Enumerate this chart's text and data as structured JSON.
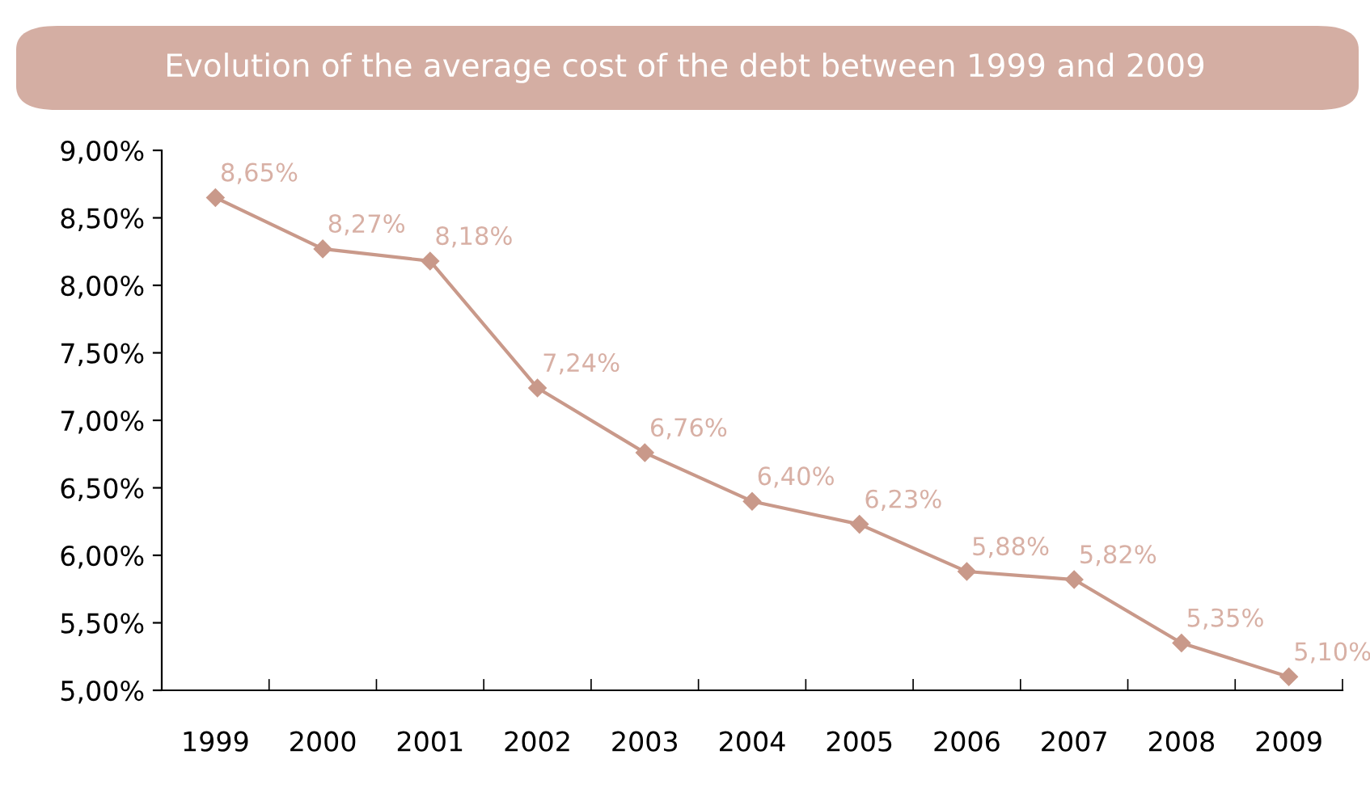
{
  "chart_data": {
    "type": "line",
    "title": "Evolution of the average cost of the debt between 1999 and 2009",
    "categories": [
      "1999",
      "2000",
      "2001",
      "2002",
      "2003",
      "2004",
      "2005",
      "2006",
      "2007",
      "2008",
      "2009"
    ],
    "series": [
      {
        "color": "#c9998a",
        "values": [
          8.65,
          8.27,
          8.18,
          7.24,
          6.76,
          6.4,
          6.23,
          5.88,
          5.82,
          5.35,
          5.1
        ],
        "value_labels": [
          "8,65%",
          "8,27%",
          "8,18%",
          "7,24%",
          "6,76%",
          "6,40%",
          "6,23%",
          "5,88%",
          "5,82%",
          "5,35%",
          "5,10%"
        ]
      }
    ],
    "ylim": [
      5,
      9
    ],
    "yticks": [
      {
        "value": 5,
        "label": "5,00%"
      },
      {
        "value": 5.5,
        "label": "5,50%"
      },
      {
        "value": 6,
        "label": "6,00%"
      },
      {
        "value": 6.5,
        "label": "6,50%"
      },
      {
        "value": 7,
        "label": "7,00%"
      },
      {
        "value": 7.5,
        "label": "7,50%"
      },
      {
        "value": 8,
        "label": "8,00%"
      },
      {
        "value": 8.5,
        "label": "8,50%"
      },
      {
        "value": 9,
        "label": "9,00%"
      }
    ],
    "marker": "diamond",
    "line_style": "solid",
    "grid": false,
    "legend": false
  }
}
